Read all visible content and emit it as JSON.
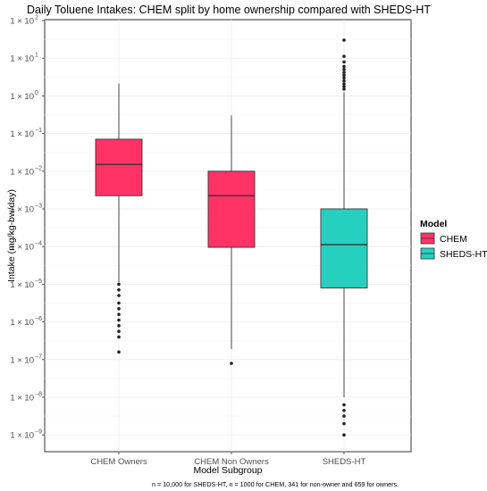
{
  "chart_data": {
    "type": "box",
    "title": "Daily Toluene Intakes: CHEM split by home ownership compared with SHEDS-HT",
    "xlabel": "Model Subgroup",
    "ylabel": "Intake (mg/kg-bw/day)",
    "yscale": "log10",
    "ylim": [
      -9.3,
      2
    ],
    "yticks": [
      {
        "exp": 2,
        "label": "1 × 10",
        "sup": "2"
      },
      {
        "exp": 1,
        "label": "1 × 10",
        "sup": "1"
      },
      {
        "exp": 0,
        "label": "1 × 10",
        "sup": "0"
      },
      {
        "exp": -1,
        "label": "1 × 10",
        "sup": "−1"
      },
      {
        "exp": -2,
        "label": "1 × 10",
        "sup": "−2"
      },
      {
        "exp": -3,
        "label": "1 × 10",
        "sup": "−3"
      },
      {
        "exp": -4,
        "label": "1 × 10",
        "sup": "−4"
      },
      {
        "exp": -5,
        "label": "1 × 10",
        "sup": "−5"
      },
      {
        "exp": -6,
        "label": "1 × 10",
        "sup": "−6"
      },
      {
        "exp": -7,
        "label": "1 × 10",
        "sup": "−7"
      },
      {
        "exp": -8,
        "label": "1 × 10",
        "sup": "−8"
      },
      {
        "exp": -9,
        "label": "1 × 10",
        "sup": "−9"
      }
    ],
    "grid": true,
    "legend": {
      "title": "Model",
      "position": "right",
      "entries": [
        {
          "label": "CHEM",
          "color": "#ff3366"
        },
        {
          "label": "SHEDS-HT",
          "color": "#26d0bf"
        }
      ]
    },
    "boxes": [
      {
        "category": "CHEM Owners",
        "model": "CHEM",
        "color": "#ff3366",
        "whisker_low": -4.95,
        "q1": -2.65,
        "median": -1.82,
        "q3": -1.15,
        "whisker_high": 0.33,
        "outliers": [
          -5.0,
          -5.15,
          -5.3,
          -5.5,
          -5.65,
          -5.8,
          -5.95,
          -6.1,
          -6.25,
          -6.4,
          -6.8
        ]
      },
      {
        "category": "CHEM Non Owners",
        "model": "CHEM",
        "color": "#ff3366",
        "whisker_low": -6.72,
        "q1": -4.02,
        "median": -2.65,
        "q3": -2.0,
        "whisker_high": -0.52,
        "outliers": [
          -7.1
        ]
      },
      {
        "category": "SHEDS-HT",
        "model": "SHEDS-HT",
        "color": "#26d0bf",
        "whisker_low": -8.0,
        "q1": -5.1,
        "median": -3.95,
        "q3": -3.0,
        "whisker_high": 0.1,
        "outliers": [
          0.18,
          0.25,
          0.32,
          0.4,
          0.48,
          0.55,
          0.62,
          0.7,
          0.78,
          0.9,
          1.05,
          1.48,
          -8.2,
          -8.35,
          -8.5,
          -8.7,
          -9.0
        ]
      }
    ],
    "caption": "n = 10,000 for SHEDS-HT, n = 1000 for CHEM, 341 for non-owner and 659 for owners."
  }
}
